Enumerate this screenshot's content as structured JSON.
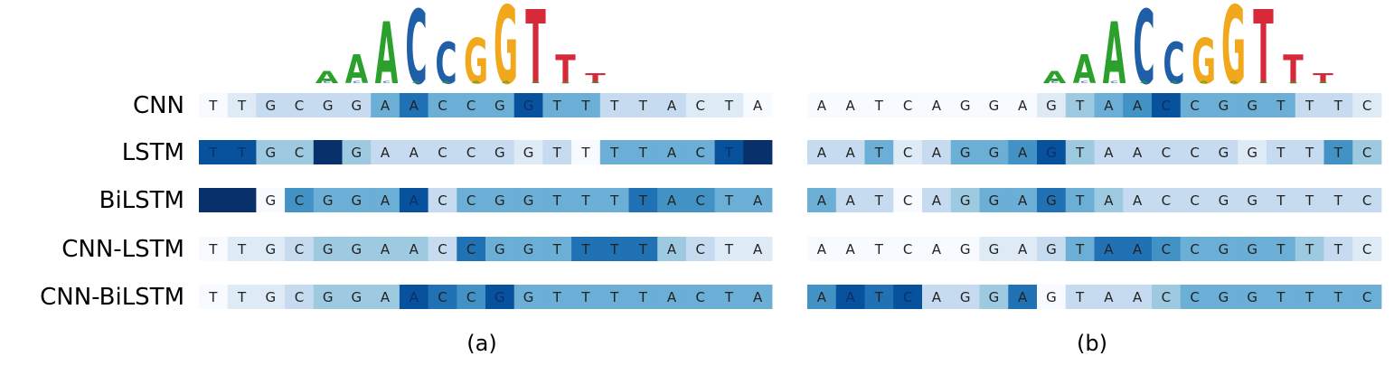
{
  "colors": {
    "scale": [
      "#f7fbff",
      "#deebf7",
      "#c6dbef",
      "#9ecae1",
      "#6baed6",
      "#4292c6",
      "#2171b5",
      "#08519c",
      "#08306b"
    ],
    "A": "#2ca02c",
    "C": "#1f5fa8",
    "G": "#f2a81d",
    "T": "#d62a3a"
  },
  "models": [
    "CNN",
    "LSTM",
    "BiLSTM",
    "CNN-LSTM",
    "CNN-BiLSTM"
  ],
  "panels": [
    {
      "caption": "(a)",
      "sequence": "TTGCGGAACCGGTTTTACTA",
      "motif_logo": [
        "A",
        "A",
        "A",
        "C",
        "C",
        "G",
        "G",
        "T",
        "T",
        "T"
      ],
      "motif_heights": [
        0.15,
        0.35,
        0.75,
        0.9,
        0.5,
        0.55,
        0.95,
        0.9,
        0.35,
        0.12
      ],
      "attention": [
        [
          0.05,
          0.1,
          0.2,
          0.2,
          0.3,
          0.3,
          0.45,
          0.75,
          0.5,
          0.45,
          0.5,
          0.85,
          0.55,
          0.45,
          0.3,
          0.3,
          0.3,
          0.15,
          0.1,
          0.05
        ],
        [
          0.9,
          0.85,
          0.35,
          0.4,
          0.95,
          0.4,
          0.3,
          0.3,
          0.3,
          0.25,
          0.2,
          0.1,
          0.3,
          0.05,
          0.55,
          0.55,
          0.5,
          0.5,
          0.9,
          0.95
        ],
        [
          0.95,
          0.95,
          0.05,
          0.6,
          0.55,
          0.55,
          0.55,
          0.85,
          0.3,
          0.45,
          0.45,
          0.45,
          0.45,
          0.45,
          0.5,
          0.7,
          0.6,
          0.6,
          0.55,
          0.5
        ],
        [
          0.05,
          0.1,
          0.15,
          0.3,
          0.4,
          0.4,
          0.4,
          0.35,
          0.2,
          0.7,
          0.5,
          0.5,
          0.55,
          0.8,
          0.8,
          0.75,
          0.35,
          0.2,
          0.15,
          0.1
        ],
        [
          0.05,
          0.1,
          0.1,
          0.2,
          0.35,
          0.35,
          0.35,
          0.9,
          0.7,
          0.65,
          0.9,
          0.55,
          0.55,
          0.55,
          0.55,
          0.55,
          0.55,
          0.55,
          0.55,
          0.55
        ]
      ]
    },
    {
      "caption": "(b)",
      "sequence": "AATCAGGAGTAACCGGTTTC",
      "motif_logo": [
        "A",
        "A",
        "A",
        "C",
        "C",
        "G",
        "G",
        "T",
        "T",
        "T"
      ],
      "motif_heights": [
        0.15,
        0.35,
        0.75,
        0.9,
        0.5,
        0.55,
        0.95,
        0.9,
        0.35,
        0.12
      ],
      "attention": [
        [
          0.05,
          0.05,
          0.05,
          0.05,
          0.05,
          0.05,
          0.05,
          0.05,
          0.1,
          0.35,
          0.5,
          0.6,
          0.85,
          0.55,
          0.5,
          0.45,
          0.45,
          0.3,
          0.2,
          0.1
        ],
        [
          0.3,
          0.3,
          0.45,
          0.15,
          0.3,
          0.5,
          0.55,
          0.6,
          0.85,
          0.4,
          0.3,
          0.3,
          0.25,
          0.2,
          0.3,
          0.1,
          0.2,
          0.25,
          0.6,
          0.4
        ],
        [
          0.55,
          0.3,
          0.3,
          0.05,
          0.25,
          0.35,
          0.45,
          0.55,
          0.8,
          0.45,
          0.35,
          0.3,
          0.3,
          0.25,
          0.2,
          0.2,
          0.2,
          0.2,
          0.2,
          0.2
        ],
        [
          0.05,
          0.05,
          0.05,
          0.05,
          0.05,
          0.05,
          0.1,
          0.1,
          0.2,
          0.45,
          0.75,
          0.8,
          0.65,
          0.55,
          0.5,
          0.5,
          0.45,
          0.35,
          0.25,
          0.15
        ],
        [
          0.6,
          0.85,
          0.75,
          0.9,
          0.3,
          0.3,
          0.35,
          0.7,
          0.05,
          0.2,
          0.25,
          0.3,
          0.35,
          0.45,
          0.55,
          0.55,
          0.5,
          0.5,
          0.5,
          0.5
        ]
      ]
    }
  ]
}
